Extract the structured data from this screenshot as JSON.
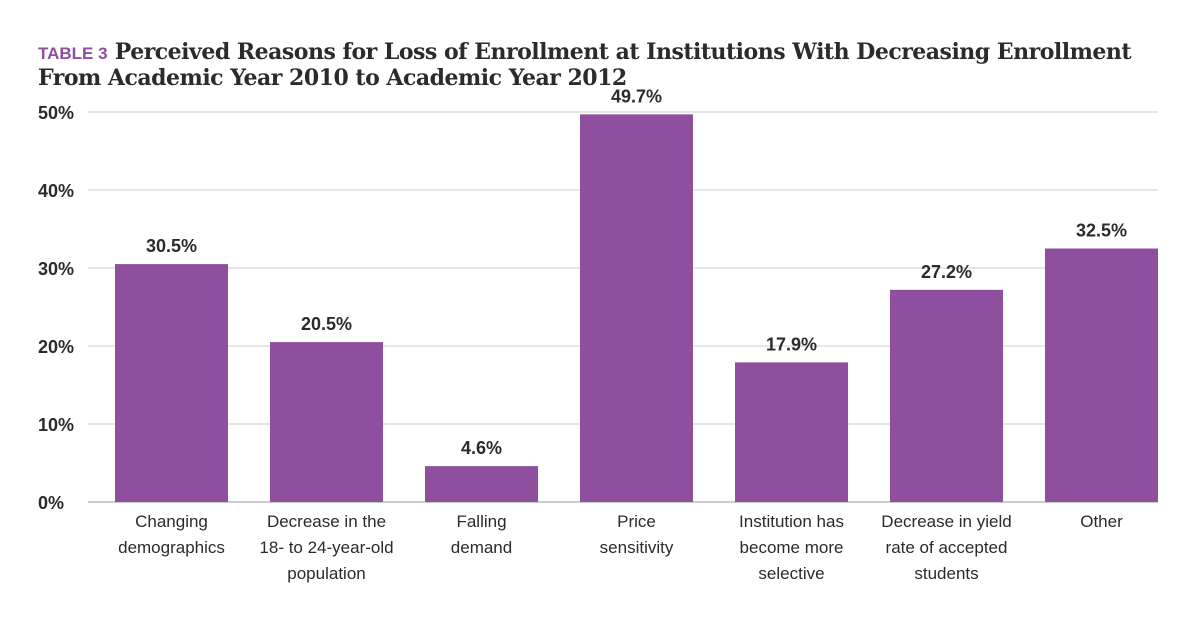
{
  "title": {
    "tag": "TABLE 3",
    "text": "Perceived Reasons for Loss of Enrollment at Institutions With Decreasing Enrollment From Academic Year 2010 to Academic Year 2012"
  },
  "chart_data": {
    "type": "bar",
    "categories": [
      [
        "Changing",
        "demographics"
      ],
      [
        "Decrease in the",
        "18- to 24-year-old",
        "population"
      ],
      [
        "Falling",
        "demand"
      ],
      [
        "Price",
        "sensitivity"
      ],
      [
        "Institution has",
        "become more",
        "selective"
      ],
      [
        "Decrease in yield",
        "rate of accepted",
        "students"
      ],
      [
        "Other"
      ]
    ],
    "values": [
      30.5,
      20.5,
      4.6,
      49.7,
      17.9,
      27.2,
      32.5
    ],
    "value_labels": [
      "30.5%",
      "20.5%",
      "4.6%",
      "49.7%",
      "17.9%",
      "27.2%",
      "32.5%"
    ],
    "y_ticks": [
      0,
      10,
      20,
      30,
      40,
      50
    ],
    "y_tick_labels": [
      "0%",
      "10%",
      "20%",
      "30%",
      "40%",
      "50%"
    ],
    "ylim": [
      0,
      50
    ],
    "grid": true,
    "bar_color": "#8e4f9e",
    "grid_color": "#cccccc"
  }
}
